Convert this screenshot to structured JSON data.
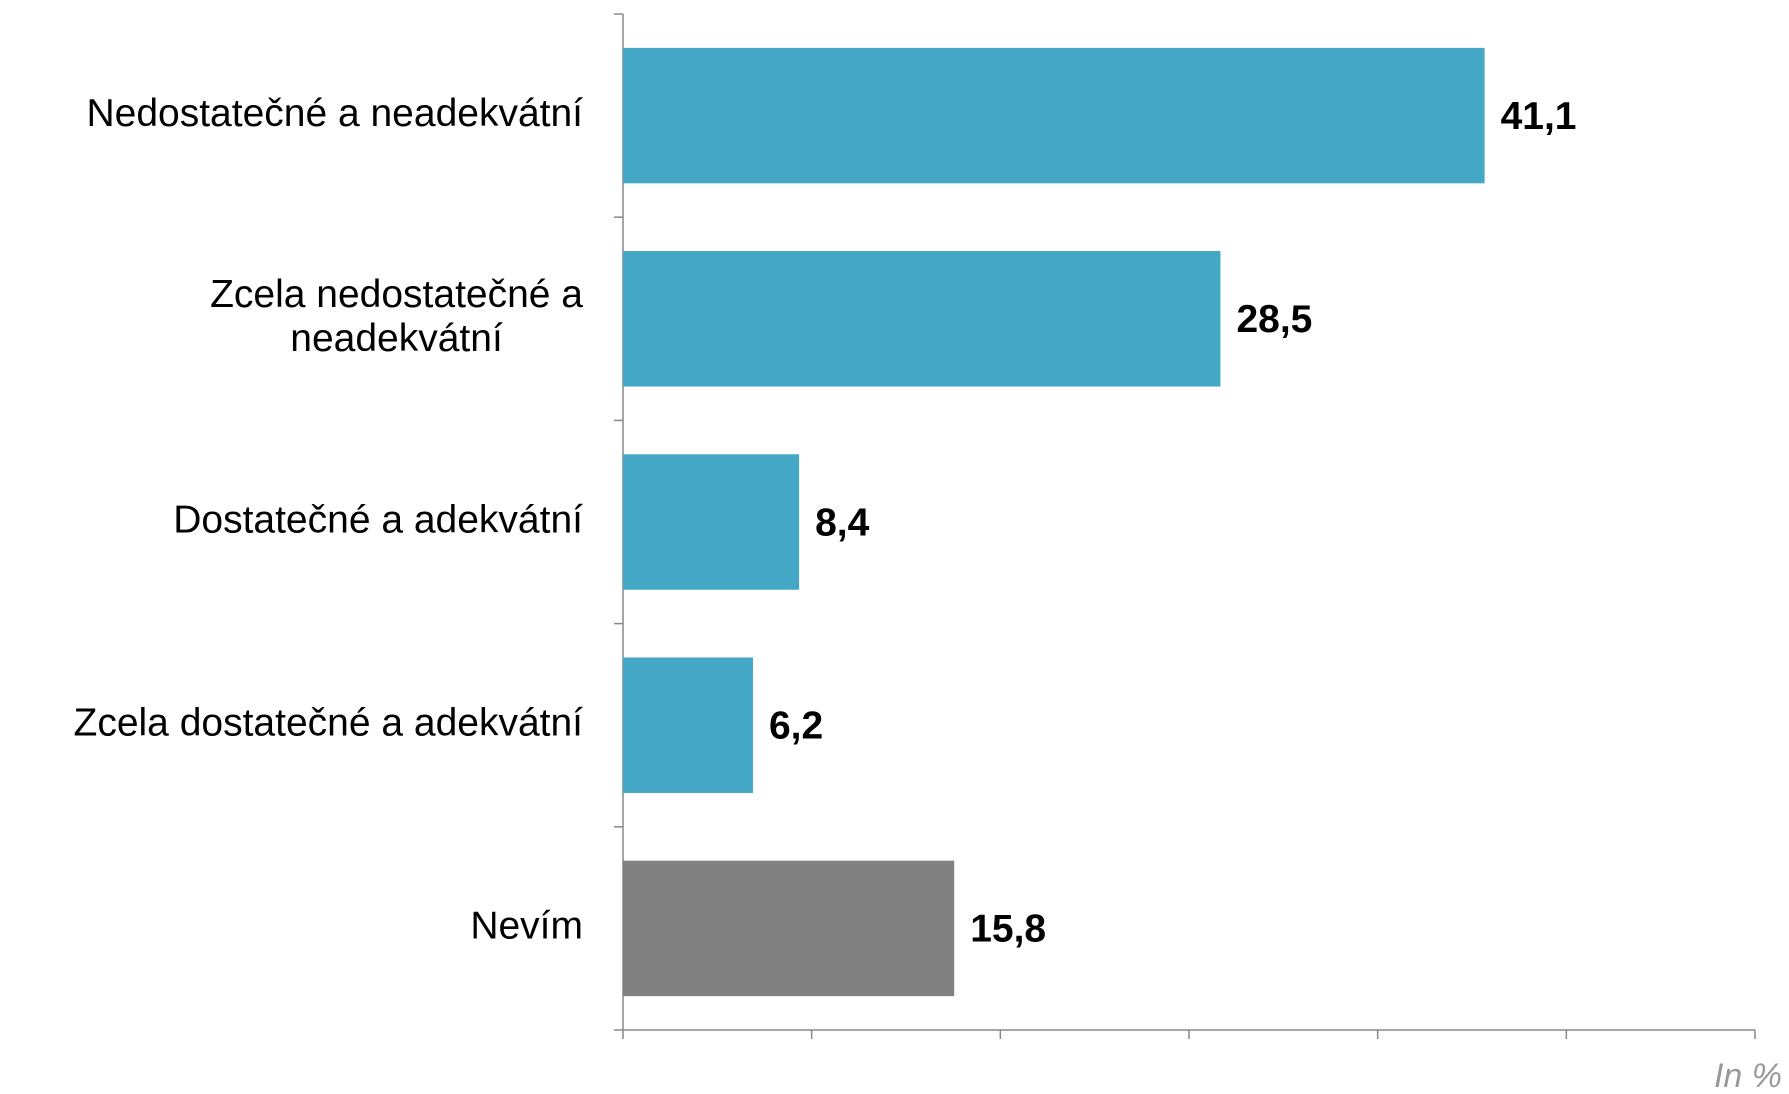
{
  "chart_data": {
    "type": "barh",
    "categories": [
      "Nedostatečné a neadekvátní",
      "Zcela nedostatečné a neadekvátní",
      "Dostatečné a adekvátní",
      "Zcela dostatečné a adekvátní",
      "Nevím"
    ],
    "values": [
      41.1,
      28.5,
      8.4,
      6.2,
      15.8
    ],
    "value_labels": [
      "41,1",
      "28,5",
      "8,4",
      "6,2",
      "15,8"
    ],
    "colors": [
      "#43a7c5",
      "#43a7c5",
      "#43a7c5",
      "#43a7c5",
      "#808080"
    ],
    "xlim": [
      0,
      54
    ],
    "xticks": [
      0,
      9,
      18,
      27,
      36,
      45,
      54
    ],
    "annotation": "In %"
  }
}
